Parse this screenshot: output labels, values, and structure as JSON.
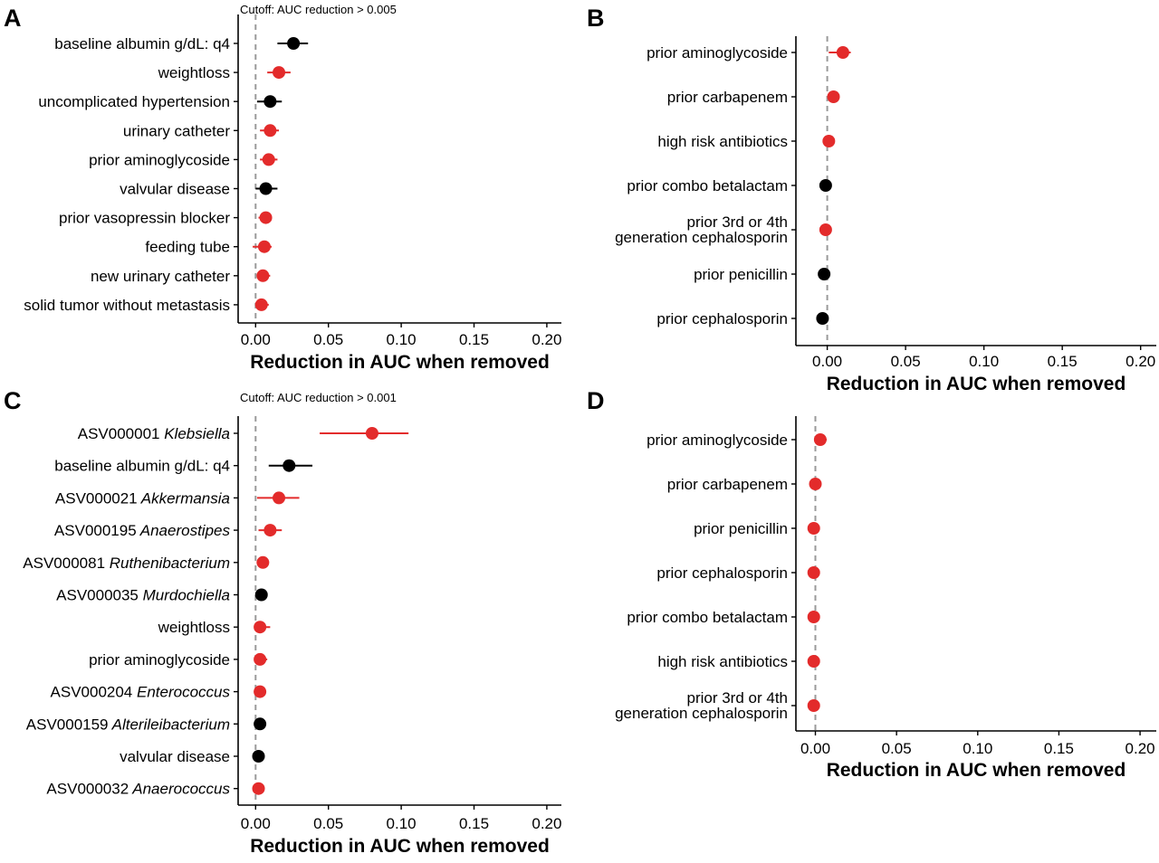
{
  "colors": {
    "red": "#e32b2b",
    "black": "#000000",
    "zero_line": "#9a9a9a",
    "axis": "#000000"
  },
  "chart_data": [
    {
      "panel": "A",
      "type": "scatter",
      "note": "Cutoff: AUC reduction > 0.005",
      "xlabel": "Reduction in AUC when removed",
      "xlim": [
        -0.012,
        0.21
      ],
      "xticks": [
        "0.00",
        "0.05",
        "0.10",
        "0.15",
        "0.20"
      ],
      "xtick_values": [
        0,
        0.05,
        0.1,
        0.15,
        0.2
      ],
      "points": [
        {
          "label": "baseline albumin g/dL: q4",
          "value": 0.026,
          "low": 0.015,
          "high": 0.036,
          "color": "black"
        },
        {
          "label": "weightloss",
          "value": 0.016,
          "low": 0.008,
          "high": 0.024,
          "color": "red"
        },
        {
          "label": "uncomplicated hypertension",
          "value": 0.01,
          "low": 0.001,
          "high": 0.018,
          "color": "black"
        },
        {
          "label": "urinary catheter",
          "value": 0.01,
          "low": 0.003,
          "high": 0.016,
          "color": "red"
        },
        {
          "label": "prior aminoglycoside",
          "value": 0.009,
          "low": 0.003,
          "high": 0.015,
          "color": "red"
        },
        {
          "label": "valvular disease",
          "value": 0.007,
          "low": 0.0,
          "high": 0.015,
          "color": "black"
        },
        {
          "label": "prior vasopressin blocker",
          "value": 0.007,
          "low": 0.002,
          "high": 0.011,
          "color": "red"
        },
        {
          "label": "feeding tube",
          "value": 0.006,
          "low": -0.002,
          "high": 0.011,
          "color": "red"
        },
        {
          "label": "new urinary catheter",
          "value": 0.005,
          "low": 0.001,
          "high": 0.01,
          "color": "red"
        },
        {
          "label": "solid tumor without metastasis",
          "value": 0.004,
          "low": 0.001,
          "high": 0.009,
          "color": "red"
        }
      ]
    },
    {
      "panel": "B",
      "type": "scatter",
      "xlabel": "Reduction in AUC when removed",
      "xlim": [
        -0.02,
        0.21
      ],
      "xticks": [
        "0.00",
        "0.05",
        "0.10",
        "0.15",
        "0.20"
      ],
      "xtick_values": [
        0,
        0.05,
        0.1,
        0.15,
        0.2
      ],
      "points": [
        {
          "label": "prior aminoglycoside",
          "value": 0.01,
          "low": 0.001,
          "high": 0.015,
          "color": "red"
        },
        {
          "label": "prior carbapenem",
          "value": 0.004,
          "low": 0.002,
          "high": 0.006,
          "color": "red"
        },
        {
          "label": "high risk antibiotics",
          "value": 0.001,
          "low": -0.001,
          "high": 0.003,
          "color": "red"
        },
        {
          "label": "prior combo betalactam",
          "value": -0.001,
          "low": -0.002,
          "high": 0.0,
          "color": "black"
        },
        {
          "label": "prior 3rd or 4th\ngeneration cephalosporin",
          "value": -0.001,
          "low": -0.002,
          "high": 0.001,
          "color": "red"
        },
        {
          "label": "prior penicillin",
          "value": -0.002,
          "low": -0.003,
          "high": -0.001,
          "color": "black"
        },
        {
          "label": "prior cephalosporin",
          "value": -0.003,
          "low": -0.004,
          "high": -0.002,
          "color": "black"
        }
      ]
    },
    {
      "panel": "C",
      "type": "scatter",
      "note": "Cutoff: AUC reduction > 0.001",
      "xlabel": "Reduction in AUC when removed",
      "xlim": [
        -0.012,
        0.21
      ],
      "xticks": [
        "0.00",
        "0.05",
        "0.10",
        "0.15",
        "0.20"
      ],
      "xtick_values": [
        0,
        0.05,
        0.1,
        0.15,
        0.2
      ],
      "points": [
        {
          "label": "ASV000001",
          "genus": "Klebsiella",
          "value": 0.08,
          "low": 0.044,
          "high": 0.105,
          "color": "red"
        },
        {
          "label": "baseline albumin g/dL: q4",
          "value": 0.023,
          "low": 0.009,
          "high": 0.039,
          "color": "black"
        },
        {
          "label": "ASV000021",
          "genus": "Akkermansia",
          "value": 0.016,
          "low": 0.001,
          "high": 0.03,
          "color": "red"
        },
        {
          "label": "ASV000195",
          "genus": "Anaerostipes",
          "value": 0.01,
          "low": 0.002,
          "high": 0.018,
          "color": "red"
        },
        {
          "label": "ASV000081",
          "genus": "Ruthenibacterium",
          "value": 0.005,
          "low": 0.002,
          "high": 0.008,
          "color": "red"
        },
        {
          "label": "ASV000035",
          "genus": "Murdochiella",
          "value": 0.004,
          "low": 0.003,
          "high": 0.005,
          "color": "black"
        },
        {
          "label": "weightloss",
          "value": 0.003,
          "low": 0.0,
          "high": 0.01,
          "color": "red"
        },
        {
          "label": "prior aminoglycoside",
          "value": 0.003,
          "low": 0.0,
          "high": 0.008,
          "color": "red"
        },
        {
          "label": "ASV000204",
          "genus": "Enterococcus",
          "value": 0.003,
          "low": 0.001,
          "high": 0.005,
          "color": "red"
        },
        {
          "label": "ASV000159",
          "genus": "Alterileibacterium",
          "value": 0.003,
          "low": 0.002,
          "high": 0.004,
          "color": "black"
        },
        {
          "label": "valvular disease",
          "value": 0.002,
          "low": 0.001,
          "high": 0.003,
          "color": "black"
        },
        {
          "label": "ASV000032",
          "genus": "Anaerococcus",
          "value": 0.002,
          "low": 0.001,
          "high": 0.003,
          "color": "red"
        }
      ]
    },
    {
      "panel": "D",
      "type": "scatter",
      "xlabel": "Reduction in AUC when removed",
      "xlim": [
        -0.012,
        0.21
      ],
      "xticks": [
        "0.00",
        "0.05",
        "0.10",
        "0.15",
        "0.20"
      ],
      "xtick_values": [
        0,
        0.05,
        0.1,
        0.15,
        0.2
      ],
      "points": [
        {
          "label": "prior aminoglycoside",
          "value": 0.003,
          "low": 0.0,
          "high": 0.007,
          "color": "red"
        },
        {
          "label": "prior carbapenem",
          "value": 0.0,
          "low": -0.001,
          "high": 0.001,
          "color": "red"
        },
        {
          "label": "prior penicillin",
          "value": -0.001,
          "low": -0.002,
          "high": 0.0,
          "color": "red"
        },
        {
          "label": "prior cephalosporin",
          "value": -0.001,
          "low": -0.002,
          "high": 0.0,
          "color": "red"
        },
        {
          "label": "prior combo betalactam",
          "value": -0.001,
          "low": -0.002,
          "high": 0.0,
          "color": "red"
        },
        {
          "label": "high risk antibiotics",
          "value": -0.001,
          "low": -0.002,
          "high": 0.0,
          "color": "red"
        },
        {
          "label": "prior 3rd or 4th\ngeneration cephalosporin",
          "value": -0.001,
          "low": -0.002,
          "high": 0.0,
          "color": "red"
        }
      ]
    }
  ]
}
